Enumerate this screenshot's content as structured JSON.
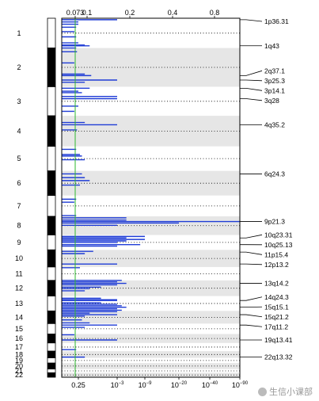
{
  "chart_data": {
    "type": "bar",
    "top_axis": {
      "tick_labels": [
        "0.073",
        "0.1",
        "0.2",
        "0.4",
        "0.8"
      ],
      "ticks": [
        0.073,
        0.1,
        0.2,
        0.4,
        0.8
      ]
    },
    "bottom_axis": {
      "tick_labels": [
        "0.25",
        "10−3",
        "10−9",
        "10−20",
        "10−40",
        "10−90"
      ],
      "ticks": [
        0.25,
        0.001,
        1e-09,
        1e-20,
        1e-40,
        1e-90
      ]
    },
    "threshold_line": {
      "value": 0.073,
      "color": "#2db82d"
    },
    "chromosomes": [
      {
        "label": "1",
        "start": 0,
        "end": 40
      },
      {
        "label": "2",
        "start": 40,
        "end": 92
      },
      {
        "label": "3",
        "start": 92,
        "end": 131
      },
      {
        "label": "4",
        "start": 131,
        "end": 172
      },
      {
        "label": "5",
        "start": 172,
        "end": 205
      },
      {
        "label": "6",
        "start": 205,
        "end": 238
      },
      {
        "label": "7",
        "start": 238,
        "end": 266
      },
      {
        "label": "8",
        "start": 266,
        "end": 291
      },
      {
        "label": "9",
        "start": 291,
        "end": 311
      },
      {
        "label": "10",
        "start": 311,
        "end": 334
      },
      {
        "label": "11",
        "start": 334,
        "end": 352
      },
      {
        "label": "12",
        "start": 352,
        "end": 373
      },
      {
        "label": "13",
        "start": 373,
        "end": 393
      },
      {
        "label": "14",
        "start": 393,
        "end": 410
      },
      {
        "label": "15",
        "start": 410,
        "end": 424
      },
      {
        "label": "16",
        "start": 424,
        "end": 436
      },
      {
        "label": "17",
        "start": 436,
        "end": 447
      },
      {
        "label": "18",
        "start": 447,
        "end": 456
      },
      {
        "label": "19",
        "start": 456,
        "end": 463
      },
      {
        "label": "20",
        "start": 463,
        "end": 471
      },
      {
        "label": "21",
        "start": 471,
        "end": 476
      },
      {
        "label": "22",
        "start": 476,
        "end": 482
      }
    ],
    "peaks": [
      {
        "label": "1p36.31",
        "pos": 2
      },
      {
        "label": "1q43",
        "pos": 37
      },
      {
        "label": "2q37.1",
        "pos": 77
      },
      {
        "label": "3p25.3",
        "pos": 83
      },
      {
        "label": "3p14.1",
        "pos": 94
      },
      {
        "label": "3q28",
        "pos": 108
      },
      {
        "label": "4q35.2",
        "pos": 143
      },
      {
        "label": "6q24.3",
        "pos": 209
      },
      {
        "label": "9p21.3",
        "pos": 273
      },
      {
        "label": "10q23.31",
        "pos": 295
      },
      {
        "label": "10q25.13",
        "pos": 304
      },
      {
        "label": "11p15.4",
        "pos": 314
      },
      {
        "label": "12p13.2",
        "pos": 330
      },
      {
        "label": "13q14.2",
        "pos": 356
      },
      {
        "label": "14q24.3",
        "pos": 379
      },
      {
        "label": "15q15.1",
        "pos": 388
      },
      {
        "label": "15q21.2",
        "pos": 398
      },
      {
        "label": "17q11.2",
        "pos": 412
      },
      {
        "label": "19q13.41",
        "pos": 432
      },
      {
        "label": "22q13.32",
        "pos": 455
      }
    ],
    "bars": [
      {
        "pos": 2,
        "q": 0.001
      },
      {
        "pos": 5,
        "q": 0.25
      },
      {
        "pos": 8,
        "q": 0.25
      },
      {
        "pos": 12,
        "q": 0.3
      },
      {
        "pos": 18,
        "q": 0.35
      },
      {
        "pos": 25,
        "q": 0.3
      },
      {
        "pos": 33,
        "q": 0.25
      },
      {
        "pos": 36,
        "q": 0.1
      },
      {
        "pos": 37,
        "q": 0.05
      },
      {
        "pos": 40,
        "q": 0.3
      },
      {
        "pos": 45,
        "q": 0.28
      },
      {
        "pos": 60,
        "q": 0.35
      },
      {
        "pos": 75,
        "q": 0.1
      },
      {
        "pos": 77,
        "q": 0.04
      },
      {
        "pos": 83,
        "q": 0.001
      },
      {
        "pos": 86,
        "q": 0.1
      },
      {
        "pos": 94,
        "q": 0.05
      },
      {
        "pos": 98,
        "q": 0.25
      },
      {
        "pos": 100,
        "q": 0.15
      },
      {
        "pos": 105,
        "q": 0.001
      },
      {
        "pos": 108,
        "q": 0.001
      },
      {
        "pos": 118,
        "q": 0.25
      },
      {
        "pos": 125,
        "q": 0.35
      },
      {
        "pos": 140,
        "q": 0.1
      },
      {
        "pos": 143,
        "q": 0.001
      },
      {
        "pos": 150,
        "q": 0.28
      },
      {
        "pos": 176,
        "q": 0.3
      },
      {
        "pos": 183,
        "q": 0.2
      },
      {
        "pos": 185,
        "q": 0.15
      },
      {
        "pos": 190,
        "q": 0.1
      },
      {
        "pos": 209,
        "q": 0.15
      },
      {
        "pos": 214,
        "q": 0.1
      },
      {
        "pos": 218,
        "q": 0.05
      },
      {
        "pos": 224,
        "q": 0.2
      },
      {
        "pos": 243,
        "q": 0.3
      },
      {
        "pos": 247,
        "q": 0.35
      },
      {
        "pos": 265,
        "q": 0.3
      },
      {
        "pos": 268,
        "q": 1e-05
      },
      {
        "pos": 271,
        "q": 1e-05
      },
      {
        "pos": 273,
        "q": 1e-90
      },
      {
        "pos": 275,
        "q": 1e-20
      },
      {
        "pos": 278,
        "q": 0.001
      },
      {
        "pos": 293,
        "q": 1e-09
      },
      {
        "pos": 295,
        "q": 1e-05
      },
      {
        "pos": 297,
        "q": 1e-09
      },
      {
        "pos": 299,
        "q": 1e-05
      },
      {
        "pos": 301,
        "q": 0.001
      },
      {
        "pos": 304,
        "q": 1e-08
      },
      {
        "pos": 306,
        "q": 0.001
      },
      {
        "pos": 313,
        "q": 0.03
      },
      {
        "pos": 316,
        "q": 0.1
      },
      {
        "pos": 330,
        "q": 0.001
      },
      {
        "pos": 335,
        "q": 0.2
      },
      {
        "pos": 352,
        "q": 0.0001
      },
      {
        "pos": 354,
        "q": 0.001
      },
      {
        "pos": 356,
        "q": 1e-05
      },
      {
        "pos": 358,
        "q": 0.001
      },
      {
        "pos": 361,
        "q": 0.01
      },
      {
        "pos": 363,
        "q": 0.05
      },
      {
        "pos": 366,
        "q": 0.1
      },
      {
        "pos": 376,
        "q": 0.01
      },
      {
        "pos": 378,
        "q": 0.001
      },
      {
        "pos": 379,
        "q": 0.001
      },
      {
        "pos": 382,
        "q": 0.01
      },
      {
        "pos": 384,
        "q": 0.001
      },
      {
        "pos": 386,
        "q": 0.0001
      },
      {
        "pos": 388,
        "q": 1e-05
      },
      {
        "pos": 390,
        "q": 0.001
      },
      {
        "pos": 392,
        "q": 0.0001
      },
      {
        "pos": 394,
        "q": 0.001
      },
      {
        "pos": 396,
        "q": 0.05
      },
      {
        "pos": 398,
        "q": 0.001
      },
      {
        "pos": 400,
        "q": 0.1
      },
      {
        "pos": 405,
        "q": 0.15
      },
      {
        "pos": 409,
        "q": 0.05
      },
      {
        "pos": 412,
        "q": 0.001
      },
      {
        "pos": 415,
        "q": 0.1
      },
      {
        "pos": 425,
        "q": 0.35
      },
      {
        "pos": 432,
        "q": 0.001
      },
      {
        "pos": 445,
        "q": 0.3
      },
      {
        "pos": 455,
        "q": 0.1
      }
    ]
  },
  "watermark": {
    "text": "生信小课部"
  }
}
